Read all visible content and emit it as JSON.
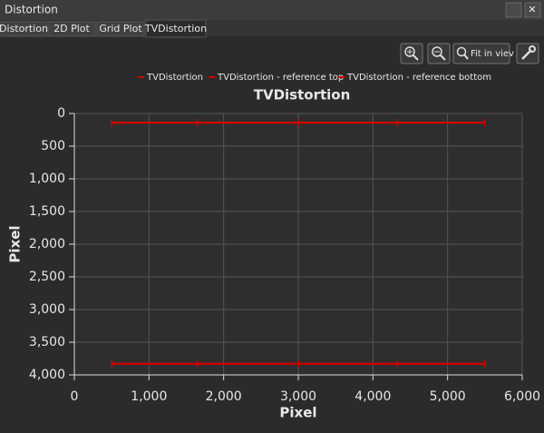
{
  "window": {
    "title": "Distortion"
  },
  "tabs": [
    "Distortion",
    "2D Plot",
    "Grid Plot",
    "TVDistortion"
  ],
  "toolbar": {
    "fit": "Fit in viev"
  },
  "chart_data": {
    "type": "line",
    "title": "TVDistortion",
    "x_label": "Pixel",
    "y_label": "Pixel",
    "xlim": [
      0,
      6000
    ],
    "ylim": [
      4000,
      0
    ],
    "xticks": [
      0,
      {
        "value": 1000,
        "label": "1,000"
      },
      {
        "value": 2000,
        "label": "2,000"
      },
      {
        "value": 3000,
        "label": "3,000"
      },
      {
        "value": 4000,
        "label": "4,000"
      },
      {
        "value": 5000,
        "label": "5,000"
      },
      {
        "value": 6000,
        "label": "6,000"
      }
    ],
    "yticks": [
      0,
      500,
      {
        "value": 1000,
        "label": "1,000"
      },
      {
        "value": 1500,
        "label": "1,500"
      },
      {
        "value": 2000,
        "label": "2,000"
      },
      {
        "value": 2500,
        "label": "2,500"
      },
      {
        "value": 3000,
        "label": "3,000"
      },
      {
        "value": 3500,
        "label": "3,500"
      },
      {
        "value": 4000,
        "label": "4,000"
      }
    ],
    "grid": true,
    "legend": "top",
    "series": [
      {
        "name": "TVDistortion",
        "color": "#d40000",
        "x": [
          500,
          1650,
          3000,
          4330,
          5500,
          null,
          500,
          1650,
          3000,
          4330,
          5500
        ],
        "values": [
          140,
          140,
          140,
          140,
          140,
          null,
          3830,
          3830,
          3830,
          3830,
          3830
        ]
      },
      {
        "name": "TVDistortion - reference top",
        "color": "#d40000",
        "x": [
          500,
          5500
        ],
        "values": [
          140,
          140
        ]
      },
      {
        "name": "TVDistortion - reference bottom",
        "color": "#d40000",
        "x": [
          500,
          5500
        ],
        "values": [
          3830,
          3830
        ]
      }
    ]
  }
}
